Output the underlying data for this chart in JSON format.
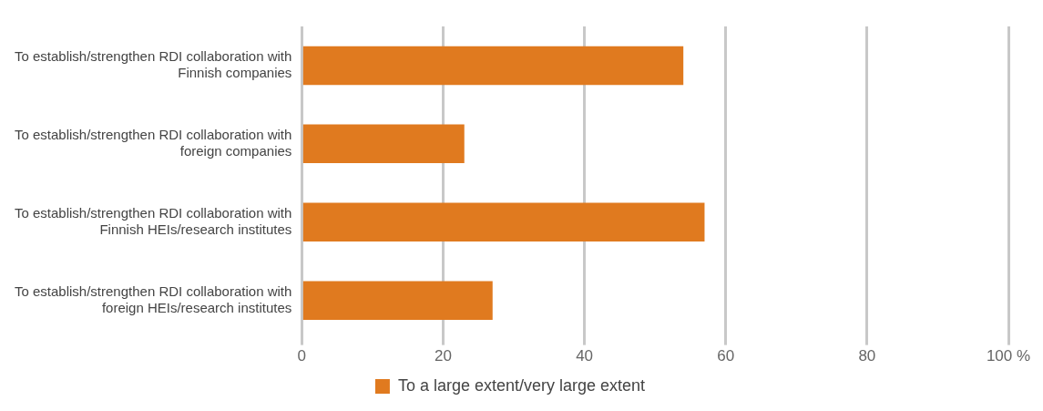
{
  "chart_data": {
    "type": "bar",
    "orientation": "horizontal",
    "categories": [
      "To establish/strengthen RDI collaboration with Finnish companies",
      "To establish/strengthen RDI collaboration with foreign companies",
      "To establish/strengthen RDI collaboration with Finnish HEIs/research institutes",
      "To establish/strengthen RDI collaboration with foreign HEIs/research institutes"
    ],
    "series": [
      {
        "name": "To a large extent/very large extent",
        "color": "#e07a1f",
        "values": [
          54,
          23,
          57,
          27
        ]
      }
    ],
    "xlim": [
      0,
      100
    ],
    "xticks": [
      0,
      20,
      40,
      60,
      80,
      {
        "value": 100,
        "label": "100 %"
      }
    ],
    "grid": "x",
    "legend": "bottom"
  }
}
